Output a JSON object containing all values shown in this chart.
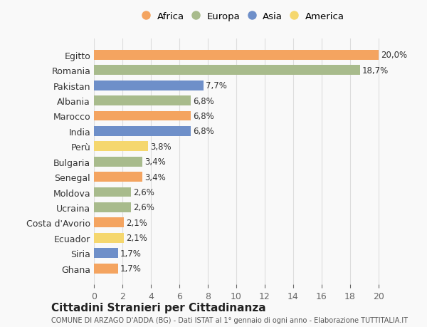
{
  "countries": [
    "Egitto",
    "Romania",
    "Pakistan",
    "Albania",
    "Marocco",
    "India",
    "Perù",
    "Bulgaria",
    "Senegal",
    "Moldova",
    "Ucraina",
    "Costa d'Avorio",
    "Ecuador",
    "Siria",
    "Ghana"
  ],
  "values": [
    20.0,
    18.7,
    7.7,
    6.8,
    6.8,
    6.8,
    3.8,
    3.4,
    3.4,
    2.6,
    2.6,
    2.1,
    2.1,
    1.7,
    1.7
  ],
  "labels": [
    "20,0%",
    "18,7%",
    "7,7%",
    "6,8%",
    "6,8%",
    "6,8%",
    "3,8%",
    "3,4%",
    "3,4%",
    "2,6%",
    "2,6%",
    "2,1%",
    "2,1%",
    "1,7%",
    "1,7%"
  ],
  "continents": [
    "Africa",
    "Europa",
    "Asia",
    "Europa",
    "Africa",
    "Asia",
    "America",
    "Europa",
    "Africa",
    "Europa",
    "Europa",
    "Africa",
    "America",
    "Asia",
    "Africa"
  ],
  "colors": {
    "Africa": "#F4A460",
    "Europa": "#A8BB8C",
    "Asia": "#6E8FC9",
    "America": "#F5D76E"
  },
  "legend_order": [
    "Africa",
    "Europa",
    "Asia",
    "America"
  ],
  "legend_colors": [
    "#F4A460",
    "#A8BB8C",
    "#6E8FC9",
    "#F5D76E"
  ],
  "title": "Cittadini Stranieri per Cittadinanza",
  "subtitle": "COMUNE DI ARZAGO D'ADDA (BG) - Dati ISTAT al 1° gennaio di ogni anno - Elaborazione TUTTITALIA.IT",
  "xlim": [
    0,
    21
  ],
  "xticks": [
    0,
    2,
    4,
    6,
    8,
    10,
    12,
    14,
    16,
    18,
    20
  ],
  "background_color": "#f9f9f9",
  "grid_color": "#dddddd"
}
